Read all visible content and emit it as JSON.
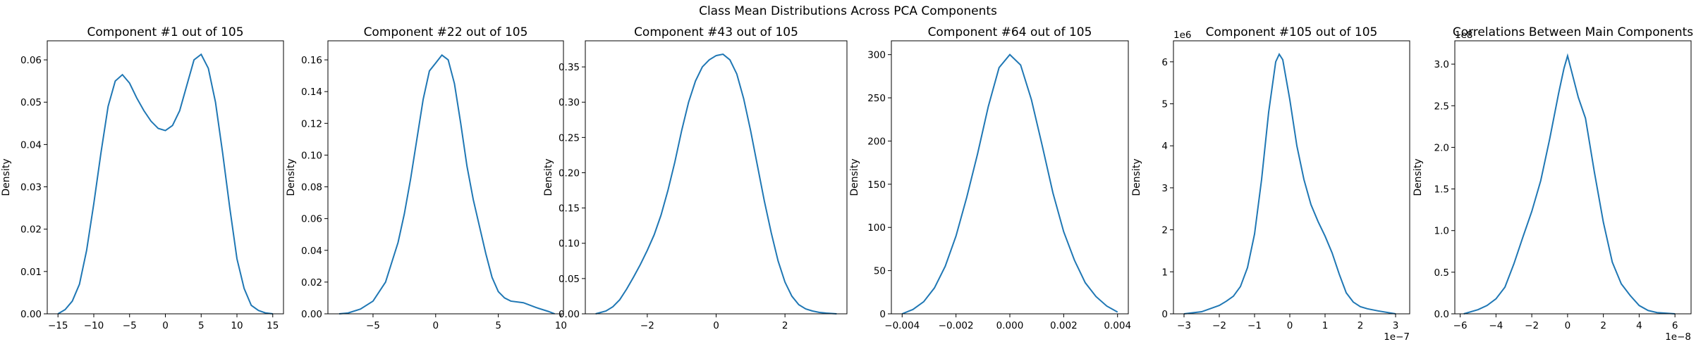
{
  "figure": {
    "suptitle": "Class Mean Distributions Across PCA Components",
    "line_color": "#1f77b4"
  },
  "chart_data": [
    {
      "type": "line",
      "title": "Component #1 out of 105",
      "xlabel": "",
      "ylabel": "Density",
      "xlim": [
        -16.5,
        16.5
      ],
      "ylim": [
        0,
        0.0645
      ],
      "xticks": [
        -15,
        -10,
        -5,
        0,
        5,
        10,
        15
      ],
      "xtick_labels": [
        "−15",
        "−10",
        "−5",
        "0",
        "5",
        "10",
        "15"
      ],
      "yticks": [
        0,
        0.01,
        0.02,
        0.03,
        0.04,
        0.05,
        0.06
      ],
      "ytick_labels": [
        "0.00",
        "0.01",
        "0.02",
        "0.03",
        "0.04",
        "0.05",
        "0.06"
      ],
      "offset_label": "",
      "grid": false,
      "series": [
        {
          "x": [
            -15,
            -14,
            -13,
            -12,
            -11,
            -10,
            -9,
            -8,
            -7,
            -6,
            -5,
            -4,
            -3,
            -2,
            -1,
            0,
            1,
            2,
            3,
            4,
            5,
            6,
            7,
            8,
            9,
            10,
            11,
            12,
            13,
            14,
            15
          ],
          "y": [
            0,
            0.001,
            0.003,
            0.007,
            0.015,
            0.026,
            0.038,
            0.049,
            0.055,
            0.0565,
            0.0545,
            0.051,
            0.048,
            0.0455,
            0.0438,
            0.0433,
            0.0445,
            0.048,
            0.054,
            0.06,
            0.0613,
            0.058,
            0.05,
            0.038,
            0.025,
            0.013,
            0.006,
            0.002,
            0.0008,
            0.0002,
            0
          ]
        }
      ]
    },
    {
      "type": "line",
      "title": "Component #22 out of 105",
      "xlabel": "",
      "ylabel": "Density",
      "xlim": [
        -8.6,
        10.2
      ],
      "ylim": [
        0,
        0.172
      ],
      "xticks": [
        -5,
        0,
        5,
        10
      ],
      "xtick_labels": [
        "−5",
        "0",
        "5",
        "10"
      ],
      "yticks": [
        0,
        0.02,
        0.04,
        0.06,
        0.08,
        0.1,
        0.12,
        0.14,
        0.16
      ],
      "ytick_labels": [
        "0.00",
        "0.02",
        "0.04",
        "0.06",
        "0.08",
        "0.10",
        "0.12",
        "0.14",
        "0.16"
      ],
      "offset_label": "",
      "grid": false,
      "series": [
        {
          "x": [
            -7.7,
            -7,
            -6,
            -5,
            -4,
            -3,
            -2.5,
            -2,
            -1.5,
            -1,
            -0.5,
            0,
            0.5,
            1,
            1.5,
            2,
            2.5,
            3,
            3.5,
            4,
            4.5,
            5,
            5.5,
            6,
            7,
            8,
            9,
            9.5
          ],
          "y": [
            0,
            0.0005,
            0.003,
            0.008,
            0.02,
            0.045,
            0.063,
            0.085,
            0.11,
            0.135,
            0.153,
            0.158,
            0.163,
            0.16,
            0.145,
            0.12,
            0.093,
            0.072,
            0.055,
            0.038,
            0.023,
            0.014,
            0.01,
            0.008,
            0.007,
            0.004,
            0.0015,
            0
          ]
        }
      ]
    },
    {
      "type": "line",
      "title": "Component #43 out of 105",
      "xlabel": "",
      "ylabel": "Density",
      "xlim": [
        -3.8,
        3.8
      ],
      "ylim": [
        0,
        0.387
      ],
      "xticks": [
        -2,
        0,
        2
      ],
      "xtick_labels": [
        "−2",
        "0",
        "2"
      ],
      "yticks": [
        0,
        0.05,
        0.1,
        0.15,
        0.2,
        0.25,
        0.3,
        0.35
      ],
      "ytick_labels": [
        "0.00",
        "0.05",
        "0.10",
        "0.15",
        "0.20",
        "0.25",
        "0.30",
        "0.35"
      ],
      "offset_label": "",
      "grid": false,
      "series": [
        {
          "x": [
            -3.5,
            -3.2,
            -3,
            -2.8,
            -2.6,
            -2.4,
            -2.2,
            -2,
            -1.8,
            -1.6,
            -1.4,
            -1.2,
            -1,
            -0.8,
            -0.6,
            -0.4,
            -0.2,
            0,
            0.2,
            0.4,
            0.6,
            0.8,
            1,
            1.2,
            1.4,
            1.6,
            1.8,
            2,
            2.2,
            2.4,
            2.6,
            2.8,
            3,
            3.2,
            3.5
          ],
          "y": [
            0,
            0.004,
            0.01,
            0.02,
            0.035,
            0.052,
            0.07,
            0.09,
            0.112,
            0.14,
            0.175,
            0.215,
            0.26,
            0.3,
            0.33,
            0.35,
            0.36,
            0.366,
            0.368,
            0.36,
            0.34,
            0.305,
            0.26,
            0.21,
            0.16,
            0.115,
            0.075,
            0.045,
            0.025,
            0.013,
            0.007,
            0.004,
            0.002,
            0.001,
            0
          ]
        }
      ]
    },
    {
      "type": "line",
      "title": "Component #64 out of 105",
      "xlabel": "",
      "ylabel": "Density",
      "xlim": [
        -0.0044,
        0.0044
      ],
      "ylim": [
        0,
        316
      ],
      "xticks": [
        -0.004,
        -0.002,
        0,
        0.002,
        0.004
      ],
      "xtick_labels": [
        "−0.004",
        "−0.002",
        "0.000",
        "0.002",
        "0.004"
      ],
      "yticks": [
        0,
        50,
        100,
        150,
        200,
        250,
        300
      ],
      "ytick_labels": [
        "0",
        "50",
        "100",
        "150",
        "200",
        "250",
        "300"
      ],
      "offset_label": "",
      "grid": false,
      "series": [
        {
          "x": [
            -0.004,
            -0.0036,
            -0.0032,
            -0.0028,
            -0.0024,
            -0.002,
            -0.0016,
            -0.0012,
            -0.0008,
            -0.0004,
            0,
            0.0004,
            0.0008,
            0.0012,
            0.0016,
            0.002,
            0.0024,
            0.0028,
            0.0032,
            0.0036,
            0.004
          ],
          "y": [
            0,
            5,
            14,
            30,
            55,
            90,
            135,
            185,
            240,
            285,
            300,
            288,
            248,
            195,
            140,
            95,
            62,
            36,
            20,
            9,
            2
          ]
        }
      ]
    },
    {
      "type": "line",
      "title": "Component #105 out of 105",
      "xlabel": "",
      "ylabel": "Density",
      "xlim": [
        -3.3,
        3.4
      ],
      "ylim": [
        0,
        6.5
      ],
      "xticks": [
        -3,
        -2,
        -1,
        0,
        1,
        2,
        3
      ],
      "xtick_labels": [
        "−3",
        "−2",
        "−1",
        "0",
        "1",
        "2",
        "3"
      ],
      "yticks": [
        0,
        1,
        2,
        3,
        4,
        5,
        6
      ],
      "ytick_labels": [
        "0",
        "1",
        "2",
        "3",
        "4",
        "5",
        "6"
      ],
      "offset_label": "1e6",
      "x_offset_label": "1e−7",
      "grid": false,
      "series": [
        {
          "x": [
            -3,
            -2.5,
            -2,
            -1.8,
            -1.6,
            -1.4,
            -1.2,
            -1,
            -0.8,
            -0.6,
            -0.4,
            -0.3,
            -0.2,
            0,
            0.2,
            0.4,
            0.6,
            0.8,
            1,
            1.2,
            1.4,
            1.6,
            1.8,
            2,
            2.2,
            2.5,
            3
          ],
          "y": [
            0,
            0.05,
            0.2,
            0.3,
            0.42,
            0.65,
            1.1,
            1.9,
            3.2,
            4.8,
            6.0,
            6.18,
            6.05,
            5.1,
            4.0,
            3.2,
            2.6,
            2.2,
            1.85,
            1.45,
            0.95,
            0.5,
            0.28,
            0.17,
            0.12,
            0.07,
            0
          ]
        }
      ]
    },
    {
      "type": "line",
      "title": "Correlations Between Main Components",
      "xlabel": "",
      "ylabel": "Density",
      "xlim": [
        -6.3,
        6.9
      ],
      "ylim": [
        0,
        3.28
      ],
      "xticks": [
        -6,
        -4,
        -2,
        0,
        2,
        4,
        6
      ],
      "xtick_labels": [
        "−6",
        "−4",
        "−2",
        "0",
        "2",
        "4",
        "6"
      ],
      "yticks": [
        0,
        0.5,
        1,
        1.5,
        2,
        2.5,
        3
      ],
      "ytick_labels": [
        "0.0",
        "0.5",
        "1.0",
        "1.5",
        "2.0",
        "2.5",
        "3.0"
      ],
      "offset_label": "1e8",
      "x_offset_label": "1e−8",
      "grid": false,
      "series": [
        {
          "x": [
            -5.8,
            -5,
            -4.5,
            -4,
            -3.5,
            -3,
            -2.5,
            -2,
            -1.5,
            -1,
            -0.5,
            -0.2,
            0,
            0.3,
            0.6,
            1,
            1.5,
            2,
            2.5,
            3,
            3.5,
            4,
            4.5,
            5,
            6
          ],
          "y": [
            0,
            0.05,
            0.1,
            0.18,
            0.32,
            0.6,
            0.92,
            1.23,
            1.6,
            2.1,
            2.65,
            2.95,
            3.1,
            2.85,
            2.6,
            2.35,
            1.7,
            1.1,
            0.62,
            0.36,
            0.22,
            0.1,
            0.04,
            0.015,
            0
          ]
        }
      ]
    }
  ]
}
